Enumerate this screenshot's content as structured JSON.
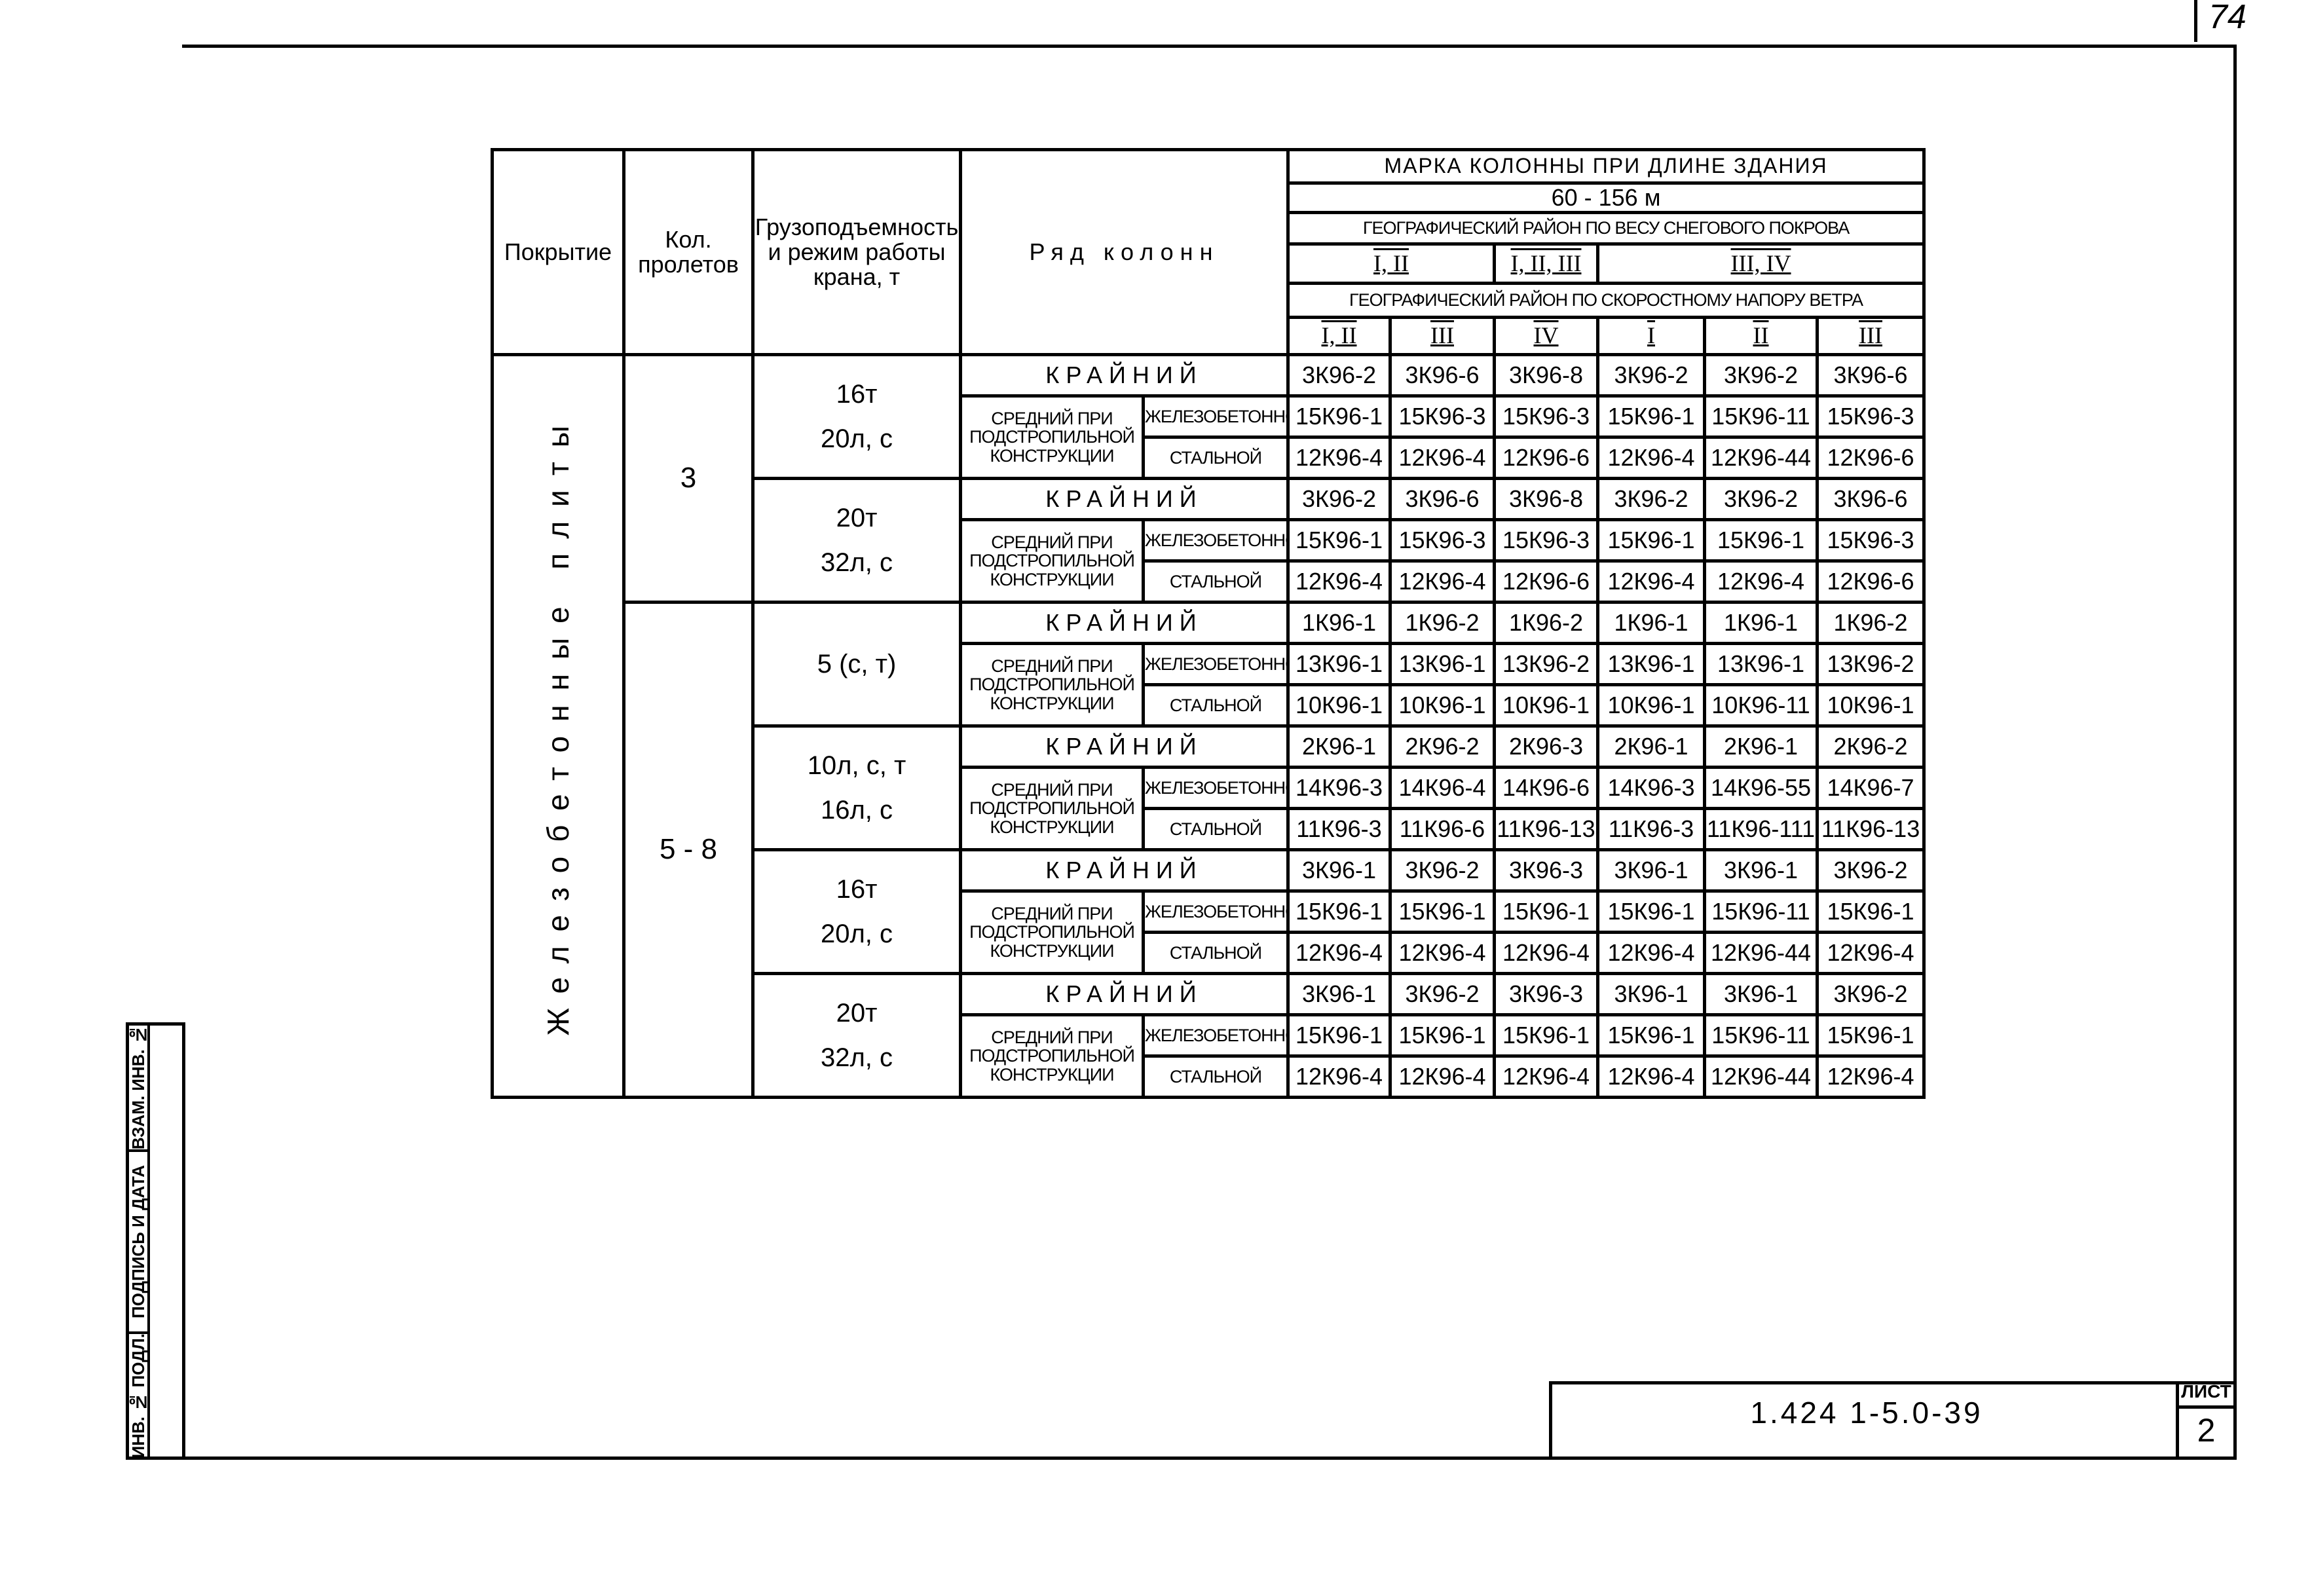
{
  "page_number": "74",
  "table": {
    "headers": {
      "covering": "Покрытие",
      "spans": "Кол. пролетов",
      "crane": "Грузоподъемность и режим работы крана, т",
      "row": "Ряд колонн",
      "mark_title": "МАРКА КОЛОННЫ ПРИ ДЛИНЕ ЗДАНИЯ",
      "length": "60 - 156 м",
      "snow_title": "ГЕОГРАФИЧЕСКИЙ РАЙОН ПО ВЕСУ СНЕГОВОГО ПОКРОВА",
      "snow_groups": [
        "I, II",
        "I, II, III",
        "III, IV"
      ],
      "wind_title": "ГЕОГРАФИЧЕСКИЙ РАЙОН ПО СКОРОСТНОМУ НАПОРУ ВЕТРА",
      "wind_groups": [
        "I, II",
        "III",
        "IV",
        "I",
        "II",
        "III"
      ]
    },
    "covering_value": "Железобетонные плиты",
    "row_labels": {
      "edge": "КРАЙНИЙ",
      "middle": "СРЕДНИЙ ПРИ ПОДСТРОПИЛЬНОЙ КОНСТРУКЦИИ",
      "rc": "ЖЕЛЕЗОБЕТОННОЙ",
      "steel": "СТАЛЬНОЙ"
    },
    "span_groups": [
      {
        "spans": "3",
        "sections": [
          {
            "crane": [
              "16т",
              "20л, с"
            ],
            "edge": [
              "3К96-2",
              "3К96-6",
              "3К96-8",
              "3К96-2",
              "3К96-2",
              "3К96-6"
            ],
            "rc": [
              "15К96-1",
              "15К96-3",
              "15К96-3",
              "15К96-1",
              "15К96-11",
              "15К96-3"
            ],
            "steel": [
              "12К96-4",
              "12К96-4",
              "12К96-6",
              "12К96-4",
              "12К96-44",
              "12К96-6"
            ]
          },
          {
            "crane": [
              "20т",
              "32л, с"
            ],
            "edge": [
              "3К96-2",
              "3К96-6",
              "3К96-8",
              "3К96-2",
              "3К96-2",
              "3К96-6"
            ],
            "rc": [
              "15К96-1",
              "15К96-3",
              "15К96-3",
              "15К96-1",
              "15К96-1",
              "15К96-3"
            ],
            "steel": [
              "12К96-4",
              "12К96-4",
              "12К96-6",
              "12К96-4",
              "12К96-4",
              "12К96-6"
            ]
          }
        ]
      },
      {
        "spans": "5 - 8",
        "sections": [
          {
            "crane": [
              "5 (с, т)"
            ],
            "edge": [
              "1К96-1",
              "1К96-2",
              "1К96-2",
              "1К96-1",
              "1К96-1",
              "1К96-2"
            ],
            "rc": [
              "13К96-1",
              "13К96-1",
              "13К96-2",
              "13К96-1",
              "13К96-1",
              "13К96-2"
            ],
            "steel": [
              "10К96-1",
              "10К96-1",
              "10К96-1",
              "10К96-1",
              "10К96-11",
              "10К96-1"
            ]
          },
          {
            "crane": [
              "10л, с, т",
              "16л, с"
            ],
            "edge": [
              "2К96-1",
              "2К96-2",
              "2К96-3",
              "2К96-1",
              "2К96-1",
              "2К96-2"
            ],
            "rc": [
              "14К96-3",
              "14К96-4",
              "14К96-6",
              "14К96-3",
              "14К96-55",
              "14К96-7"
            ],
            "steel": [
              "11К96-3",
              "11К96-6",
              "11К96-13",
              "11К96-3",
              "11К96-111",
              "11К96-13"
            ]
          },
          {
            "crane": [
              "16т",
              "20л, с"
            ],
            "edge": [
              "3К96-1",
              "3К96-2",
              "3К96-3",
              "3К96-1",
              "3К96-1",
              "3К96-2"
            ],
            "rc": [
              "15К96-1",
              "15К96-1",
              "15К96-1",
              "15К96-1",
              "15К96-11",
              "15К96-1"
            ],
            "steel": [
              "12К96-4",
              "12К96-4",
              "12К96-4",
              "12К96-4",
              "12К96-44",
              "12К96-4"
            ]
          },
          {
            "crane": [
              "20т",
              "32л, с"
            ],
            "edge": [
              "3К96-1",
              "3К96-2",
              "3К96-3",
              "3К96-1",
              "3К96-1",
              "3К96-2"
            ],
            "rc": [
              "15К96-1",
              "15К96-1",
              "15К96-1",
              "15К96-1",
              "15К96-11",
              "15К96-1"
            ],
            "steel": [
              "12К96-4",
              "12К96-4",
              "12К96-4",
              "12К96-4",
              "12К96-44",
              "12К96-4"
            ]
          }
        ]
      }
    ]
  },
  "stamp": {
    "replaced_inv": "ВЗАМ. ИНВ. №",
    "signature_date": "ПОДПИСЬ И ДАТА",
    "original_inv": "ИНВ. № ПОДЛ."
  },
  "title_block": {
    "code": "1.424 1-5.0-39",
    "sheet_label": "ЛИСТ",
    "sheet_number": "2"
  }
}
